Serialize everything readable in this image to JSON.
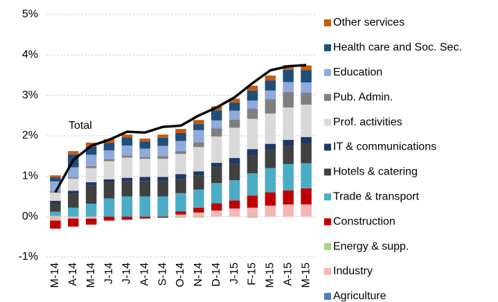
{
  "chart_data": {
    "type": "bar",
    "stacked": true,
    "categories": [
      "M-14",
      "A-14",
      "M-14",
      "J-14",
      "J-14",
      "A-14",
      "S-14",
      "O-14",
      "N-14",
      "D-14",
      "J-15",
      "F-15",
      "M-15",
      "A-15",
      "M-15"
    ],
    "ylim": [
      -1,
      5
    ],
    "yticks": [
      {
        "value": -1,
        "label": "-1%"
      },
      {
        "value": 0,
        "label": "0%"
      },
      {
        "value": 1,
        "label": "1%"
      },
      {
        "value": 2,
        "label": "2%"
      },
      {
        "value": 3,
        "label": "3%"
      },
      {
        "value": 4,
        "label": "4%"
      },
      {
        "value": 5,
        "label": "5%"
      }
    ],
    "grid": true,
    "series": [
      {
        "name": "Agriculture",
        "color": "#4a7ebb",
        "values": [
          0,
          0,
          0,
          0,
          0,
          0,
          0,
          0,
          0,
          0,
          0,
          0,
          0,
          0,
          0
        ]
      },
      {
        "name": "Industry",
        "color": "#f4b6b6",
        "values": [
          -0.1,
          -0.05,
          -0.05,
          0,
          0,
          0,
          0,
          0.05,
          0.1,
          0.15,
          0.2,
          0.22,
          0.27,
          0.3,
          0.3
        ]
      },
      {
        "name": "Energy & supp.",
        "color": "#a9d18e",
        "values": [
          0.02,
          0,
          0,
          0,
          0,
          0,
          0,
          -0.03,
          -0.03,
          0,
          0,
          -0.03,
          0,
          0,
          0
        ]
      },
      {
        "name": "Construction",
        "color": "#c00000",
        "values": [
          -0.2,
          -0.2,
          -0.15,
          -0.1,
          -0.08,
          -0.05,
          -0.03,
          0.08,
          0.12,
          0.18,
          0.2,
          0.3,
          0.33,
          0.35,
          0.4
        ]
      },
      {
        "name": "Trade & transport",
        "color": "#4bacc6",
        "values": [
          0.1,
          0.22,
          0.32,
          0.45,
          0.5,
          0.5,
          0.5,
          0.45,
          0.45,
          0.5,
          0.5,
          0.55,
          0.6,
          0.65,
          0.62
        ]
      },
      {
        "name": "Hotels & catering",
        "color": "#404040",
        "values": [
          0.2,
          0.35,
          0.45,
          0.4,
          0.38,
          0.38,
          0.38,
          0.35,
          0.35,
          0.4,
          0.4,
          0.45,
          0.45,
          0.45,
          0.5
        ]
      },
      {
        "name": "IT & communications",
        "color": "#203864",
        "values": [
          0.07,
          0.07,
          0.08,
          0.07,
          0.08,
          0.1,
          0.1,
          0.12,
          0.1,
          0.1,
          0.15,
          0.15,
          0.15,
          0.15,
          0.15
        ]
      },
      {
        "name": "Prof. activities",
        "color": "#d9d9d9",
        "values": [
          0.2,
          0.3,
          0.35,
          0.45,
          0.5,
          0.45,
          0.45,
          0.5,
          0.6,
          0.65,
          0.75,
          0.75,
          0.75,
          0.8,
          0.8
        ]
      },
      {
        "name": "Pub. Admin.",
        "color": "#7f7f7f",
        "values": [
          0.03,
          0.03,
          0.05,
          0.05,
          0.05,
          0.05,
          0.07,
          0.07,
          0.12,
          0.2,
          0.2,
          0.25,
          0.35,
          0.38,
          0.3
        ]
      },
      {
        "name": "Education",
        "color": "#8faadc",
        "values": [
          0.25,
          0.25,
          0.28,
          0.22,
          0.25,
          0.2,
          0.25,
          0.25,
          0.3,
          0.2,
          0.22,
          0.2,
          0.22,
          0.25,
          0.25
        ]
      },
      {
        "name": "Health care and Soc. Sec.",
        "color": "#1f4e79",
        "values": [
          0.1,
          0.32,
          0.2,
          0.18,
          0.2,
          0.18,
          0.2,
          0.2,
          0.15,
          0.25,
          0.2,
          0.25,
          0.25,
          0.3,
          0.3
        ]
      },
      {
        "name": "Other services",
        "color": "#c55a11",
        "values": [
          0.05,
          0.08,
          0.1,
          0.1,
          0.07,
          0.07,
          0.08,
          0.1,
          0.1,
          0.1,
          0.1,
          0.12,
          0.12,
          0.12,
          0.12
        ]
      }
    ],
    "line": {
      "name": "Total",
      "color": "#000000",
      "values": [
        0.6,
        1.4,
        1.75,
        1.9,
        2.1,
        2.08,
        2.22,
        2.25,
        2.5,
        2.7,
        2.95,
        3.3,
        3.62,
        3.72,
        3.75
      ]
    }
  }
}
